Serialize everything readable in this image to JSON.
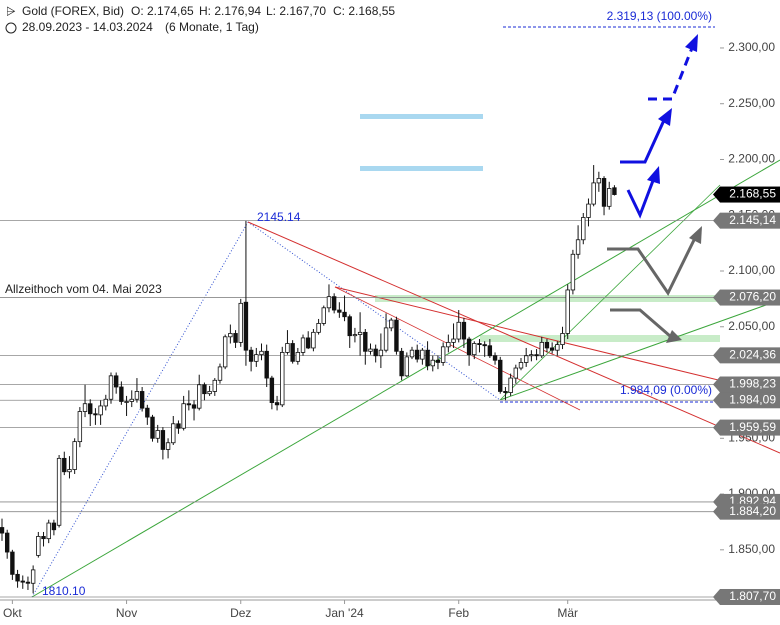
{
  "header": {
    "symbol": "Gold (FOREX, Bid)",
    "open": "O: 2.174,65",
    "high": "H: 2.176,94",
    "low": "L: 2.167,70",
    "close": "C: 2.168,55",
    "range": "28.09.2023 - 14.03.2024",
    "period": "(6 Monate, 1 Tag)"
  },
  "chart_data": {
    "type": "candlestick",
    "categories": [
      null,
      null,
      "Okt",
      null,
      null,
      null,
      null,
      null,
      null,
      null,
      null,
      null,
      null,
      null,
      null,
      null,
      null,
      null,
      null,
      null,
      null,
      null,
      null,
      null,
      "Nov",
      null,
      null,
      null,
      null,
      null,
      null,
      null,
      null,
      null,
      null,
      null,
      null,
      null,
      null,
      null,
      null,
      null,
      null,
      null,
      null,
      null,
      "Dez",
      null,
      null,
      null,
      null,
      null,
      null,
      null,
      null,
      null,
      null,
      null,
      null,
      null,
      null,
      null,
      null,
      null,
      null,
      null,
      "Jan '24",
      null,
      null,
      null,
      null,
      null,
      null,
      null,
      null,
      null,
      null,
      null,
      null,
      null,
      null,
      null,
      null,
      null,
      null,
      null,
      null,
      null,
      "Feb",
      null,
      null,
      null,
      null,
      null,
      null,
      null,
      null,
      null,
      null,
      null,
      null,
      null,
      null,
      null,
      null,
      null,
      null,
      null,
      null,
      "Mär",
      null,
      null,
      null,
      null,
      null,
      null,
      null,
      null,
      null
    ],
    "ohlc": [
      [
        1870,
        1878,
        1858,
        1865
      ],
      [
        1865,
        1868,
        1842,
        1848
      ],
      [
        1848,
        1850,
        1823,
        1828
      ],
      [
        1828,
        1832,
        1816,
        1822
      ],
      [
        1822,
        1827,
        1815,
        1821
      ],
      [
        1821,
        1826,
        1814,
        1820
      ],
      [
        1820,
        1836,
        1811,
        1832
      ],
      [
        1845,
        1866,
        1843,
        1862
      ],
      [
        1862,
        1866,
        1853,
        1860
      ],
      [
        1860,
        1877,
        1856,
        1874
      ],
      [
        1874,
        1877,
        1863,
        1868
      ],
      [
        1872,
        1935,
        1870,
        1932
      ],
      [
        1932,
        1938,
        1917,
        1920
      ],
      [
        1920,
        1934,
        1914,
        1922
      ],
      [
        1922,
        1950,
        1918,
        1947
      ],
      [
        1947,
        1978,
        1942,
        1974
      ],
      [
        1974,
        1998,
        1969,
        1981
      ],
      [
        1981,
        1985,
        1961,
        1972
      ],
      [
        1972,
        1977,
        1962,
        1971
      ],
      [
        1971,
        1984,
        1962,
        1979
      ],
      [
        1979,
        1989,
        1975,
        1985
      ],
      [
        1985,
        2009,
        1981,
        2006
      ],
      [
        2006,
        2009,
        1990,
        1996
      ],
      [
        1996,
        2001,
        1980,
        1983
      ],
      [
        1983,
        1988,
        1970,
        1983
      ],
      [
        1983,
        1993,
        1978,
        1985
      ],
      [
        1985,
        2004,
        1982,
        1992
      ],
      [
        1992,
        1996,
        1974,
        1977
      ],
      [
        1977,
        1980,
        1962,
        1969
      ],
      [
        1969,
        1971,
        1947,
        1950
      ],
      [
        1950,
        1962,
        1946,
        1957
      ],
      [
        1957,
        1960,
        1931,
        1940
      ],
      [
        1940,
        1950,
        1932,
        1946
      ],
      [
        1946,
        1970,
        1944,
        1963
      ],
      [
        1963,
        1966,
        1954,
        1959
      ],
      [
        1959,
        1988,
        1957,
        1981
      ],
      [
        1981,
        1993,
        1975,
        1980
      ],
      [
        1980,
        1984,
        1966,
        1977
      ],
      [
        1977,
        2007,
        1975,
        1998
      ],
      [
        1998,
        2000,
        1984,
        1990
      ],
      [
        1990,
        1997,
        1988,
        1992
      ],
      [
        1992,
        2004,
        1988,
        2002
      ],
      [
        2002,
        2017,
        1999,
        2014
      ],
      [
        2014,
        2043,
        2012,
        2041
      ],
      [
        2041,
        2052,
        2035,
        2044
      ],
      [
        2044,
        2047,
        2031,
        2036
      ],
      [
        2036,
        2075,
        2032,
        2071
      ],
      [
        2072,
        2145,
        2015,
        2029
      ],
      [
        2029,
        2032,
        2010,
        2019
      ],
      [
        2019,
        2031,
        2014,
        2025
      ],
      [
        2025,
        2035,
        2020,
        2028
      ],
      [
        2028,
        2034,
        1996,
        2004
      ],
      [
        2004,
        2006,
        1976,
        1982
      ],
      [
        1982,
        1988,
        1975,
        1980
      ],
      [
        1980,
        2032,
        1978,
        2027
      ],
      [
        2027,
        2047,
        2025,
        2035
      ],
      [
        2035,
        2038,
        2017,
        2019
      ],
      [
        2019,
        2031,
        2016,
        2027
      ],
      [
        2027,
        2043,
        2024,
        2040
      ],
      [
        2040,
        2046,
        2030,
        2031
      ],
      [
        2031,
        2048,
        2028,
        2045
      ],
      [
        2045,
        2057,
        2043,
        2053
      ],
      [
        2053,
        2069,
        2051,
        2067
      ],
      [
        2067,
        2088,
        2063,
        2077
      ],
      [
        2077,
        2080,
        2062,
        2065
      ],
      [
        2065,
        2072,
        2058,
        2063
      ],
      [
        2063,
        2078,
        2055,
        2059
      ],
      [
        2059,
        2061,
        2031,
        2042
      ],
      [
        2042,
        2049,
        2036,
        2043
      ],
      [
        2043,
        2063,
        2024,
        2045
      ],
      [
        2045,
        2048,
        2016,
        2028
      ],
      [
        2028,
        2035,
        2025,
        2030
      ],
      [
        2030,
        2034,
        2018,
        2024
      ],
      [
        2024,
        2044,
        2013,
        2029
      ],
      [
        2029,
        2062,
        2027,
        2049
      ],
      [
        2049,
        2058,
        2046,
        2056
      ],
      [
        2056,
        2059,
        2025,
        2028
      ],
      [
        2028,
        2031,
        2002,
        2006
      ],
      [
        2006,
        2027,
        2005,
        2023
      ],
      [
        2023,
        2032,
        2021,
        2029
      ],
      [
        2029,
        2034,
        2018,
        2021
      ],
      [
        2021,
        2031,
        2016,
        2029
      ],
      [
        2029,
        2037,
        2011,
        2015
      ],
      [
        2015,
        2024,
        2010,
        2020
      ],
      [
        2020,
        2024,
        2012,
        2018
      ],
      [
        2018,
        2036,
        2015,
        2032
      ],
      [
        2032,
        2043,
        2027,
        2036
      ],
      [
        2036,
        2053,
        2031,
        2039
      ],
      [
        2039,
        2065,
        2036,
        2054
      ],
      [
        2054,
        2058,
        2031,
        2039
      ],
      [
        2039,
        2041,
        2015,
        2025
      ],
      [
        2025,
        2037,
        2021,
        2035
      ],
      [
        2035,
        2039,
        2027,
        2034
      ],
      [
        2034,
        2037,
        2023,
        2033
      ],
      [
        2033,
        2039,
        2022,
        2024
      ],
      [
        2024,
        2027,
        2016,
        2020
      ],
      [
        2020,
        2023,
        1990,
        1992
      ],
      [
        1992,
        1996,
        1984,
        1991
      ],
      [
        1991,
        2008,
        1988,
        2004
      ],
      [
        2004,
        2016,
        1999,
        2013
      ],
      [
        2013,
        2022,
        2011,
        2018
      ],
      [
        2018,
        2031,
        2014,
        2024
      ],
      [
        2024,
        2029,
        2019,
        2025
      ],
      [
        2025,
        2030,
        2020,
        2024
      ],
      [
        2024,
        2041,
        2022,
        2036
      ],
      [
        2036,
        2039,
        2027,
        2031
      ],
      [
        2031,
        2036,
        2026,
        2029
      ],
      [
        2029,
        2037,
        2024,
        2034
      ],
      [
        2034,
        2050,
        2030,
        2044
      ],
      [
        2044,
        2088,
        2039,
        2083
      ],
      [
        2083,
        2119,
        2079,
        2115
      ],
      [
        2115,
        2141,
        2111,
        2128
      ],
      [
        2128,
        2152,
        2124,
        2148
      ],
      [
        2148,
        2165,
        2140,
        2160
      ],
      [
        2160,
        2195,
        2158,
        2179
      ],
      [
        2179,
        2189,
        2171,
        2183
      ],
      [
        2183,
        2185,
        2150,
        2158
      ],
      [
        2158,
        2180,
        2155,
        2174
      ],
      [
        2174.65,
        2176.94,
        2167.7,
        2168.55
      ]
    ],
    "up_color": "#ffffff",
    "down_color": "#111111",
    "ylim": [
      1805,
      2343
    ],
    "yticks": [
      {
        "value": 1850,
        "label": "1.850,00"
      },
      {
        "value": 1900,
        "label": "1.900,00"
      },
      {
        "value": 1950,
        "label": "1.950,00"
      },
      {
        "value": 2000,
        "label": "2.000,00"
      },
      {
        "value": 2050,
        "label": "2.050,00"
      },
      {
        "value": 2100,
        "label": "2.100,00"
      },
      {
        "value": 2150,
        "label": "2.150,00"
      },
      {
        "value": 2200,
        "label": "2.200,00"
      },
      {
        "value": 2250,
        "label": "2.250,00"
      },
      {
        "value": 2300,
        "label": "2.300,00"
      }
    ],
    "levels": [
      {
        "value": 2168.55,
        "label": "2.168,55",
        "color": "#000000"
      },
      {
        "value": 2145.14,
        "label": "2.145,14",
        "color": "#777777"
      },
      {
        "value": 2076.2,
        "label": "2.076,20",
        "color": "#777777"
      },
      {
        "value": 2024.36,
        "label": "2.024,36",
        "color": "#777777"
      },
      {
        "value": 1998.23,
        "label": "1.998,23",
        "color": "#777777"
      },
      {
        "value": 1984.09,
        "label": "1.984,09",
        "color": "#777777"
      },
      {
        "value": 1959.59,
        "label": "1.959,59",
        "color": "#777777"
      },
      {
        "value": 1892.94,
        "label": "1.892,94",
        "color": "#777777"
      },
      {
        "value": 1884.2,
        "label": "1.884,20",
        "color": "#777777"
      },
      {
        "value": 1807.7,
        "label": "1.807,70",
        "color": "#777777"
      }
    ],
    "annotations": [
      "2145.14",
      "1810.10",
      "Allzeithoch  vom 04. Mai 2023",
      "2.319,13 (100.00%)",
      "1.984,09 (0.00%)"
    ]
  }
}
